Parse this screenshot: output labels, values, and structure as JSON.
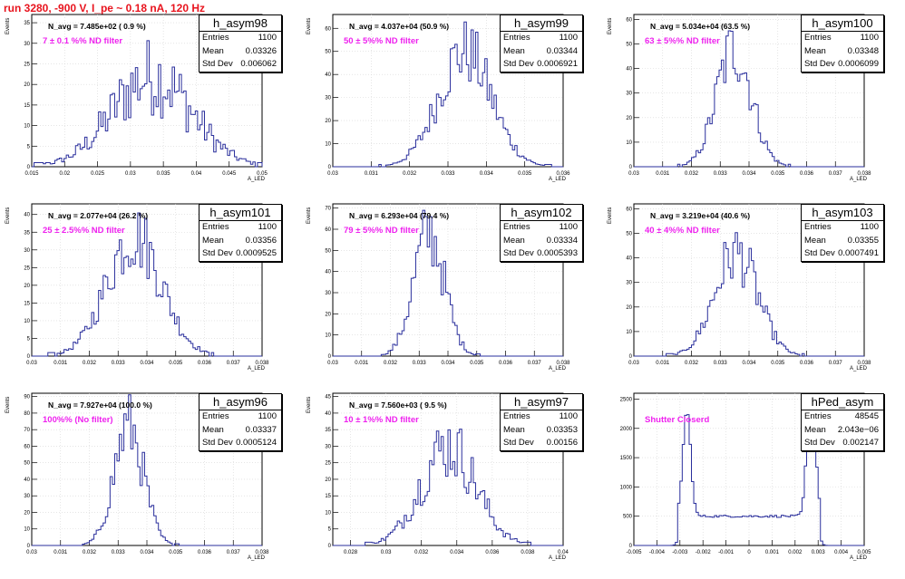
{
  "header": {
    "title": "run 3280,  -900 V, I_pe ~ 0.18 nA, 120 Hz"
  },
  "colors": {
    "title": "#e8141e",
    "hist_line": "#2a2f9c",
    "filter_text": "#ee22ee",
    "axis": "#000000"
  },
  "chart_data": [
    {
      "type": "bar",
      "name": "h_asym98",
      "stats": {
        "entries": "1100",
        "mean": "0.03326",
        "std": "0.006062"
      },
      "n_avg": "N_avg = 7.485e+02 ( 0.9 %)",
      "filter": "7 ± 0.1 %% ND filter",
      "xlabel": "A_LED",
      "ylabel": "Events",
      "xlim": [
        0.015,
        0.05
      ],
      "ylim": [
        0,
        37
      ],
      "xticks": [
        0.015,
        0.02,
        0.025,
        0.03,
        0.035,
        0.04,
        0.045,
        0.05
      ],
      "yticks": [
        0,
        5,
        10,
        15,
        20,
        25,
        30,
        35
      ],
      "shape": {
        "type": "gauss",
        "mean": 0.03326,
        "sigma": 0.006062,
        "peak": 22,
        "noise": 0.45
      }
    },
    {
      "type": "bar",
      "name": "h_asym99",
      "stats": {
        "entries": "1100",
        "mean": "0.03344",
        "std": "0.0006921"
      },
      "n_avg": "N_avg = 4.037e+04 (50.9 %)",
      "filter": "50 ± 5%% ND filter",
      "xlabel": "A_LED",
      "ylabel": "Events",
      "xlim": [
        0.03,
        0.036
      ],
      "ylim": [
        0,
        66
      ],
      "xticks": [
        0.03,
        0.031,
        0.032,
        0.033,
        0.034,
        0.035,
        0.036
      ],
      "yticks": [
        0,
        10,
        20,
        30,
        40,
        50,
        60
      ],
      "shape": {
        "type": "gauss",
        "mean": 0.03344,
        "sigma": 0.0006921,
        "peak": 50,
        "noise": 0.3
      }
    },
    {
      "type": "bar",
      "name": "h_asym100",
      "stats": {
        "entries": "1100",
        "mean": "0.03348",
        "std": "0.0006099"
      },
      "n_avg": "N_avg = 5.034e+04 (63.5 %)",
      "filter": "63 ± 5%% ND filter",
      "xlabel": "A_LED",
      "ylabel": "Events",
      "xlim": [
        0.03,
        0.038
      ],
      "ylim": [
        0,
        62
      ],
      "xticks": [
        0.03,
        0.031,
        0.032,
        0.033,
        0.034,
        0.035,
        0.036,
        0.037,
        0.038
      ],
      "yticks": [
        0,
        10,
        20,
        30,
        40,
        50,
        60
      ],
      "shape": {
        "type": "gauss",
        "mean": 0.03348,
        "sigma": 0.0006099,
        "peak": 48,
        "noise": 0.3
      }
    },
    {
      "type": "bar",
      "name": "h_asym101",
      "stats": {
        "entries": "1100",
        "mean": "0.03356",
        "std": "0.0009525"
      },
      "n_avg": "N_avg = 2.077e+04 (26.2 %)",
      "filter": "25 ± 2.5%% ND filter",
      "xlabel": "A_LED",
      "ylabel": "Events",
      "xlim": [
        0.03,
        0.038
      ],
      "ylim": [
        0,
        43
      ],
      "xticks": [
        0.03,
        0.031,
        0.032,
        0.033,
        0.034,
        0.035,
        0.036,
        0.037,
        0.038
      ],
      "yticks": [
        0,
        5,
        10,
        15,
        20,
        25,
        30,
        35,
        40
      ],
      "shape": {
        "type": "gauss",
        "mean": 0.03356,
        "sigma": 0.0009525,
        "peak": 34,
        "noise": 0.3
      }
    },
    {
      "type": "bar",
      "name": "h_asym102",
      "stats": {
        "entries": "1100",
        "mean": "0.03334",
        "std": "0.0005393"
      },
      "n_avg": "N_avg = 6.293e+04 (79.4 %)",
      "filter": "79 ± 5%% ND filter",
      "xlabel": "A_LED",
      "ylabel": "Events",
      "xlim": [
        0.03,
        0.038
      ],
      "ylim": [
        0,
        72
      ],
      "xticks": [
        0.03,
        0.031,
        0.032,
        0.033,
        0.034,
        0.035,
        0.036,
        0.037,
        0.038
      ],
      "yticks": [
        0,
        10,
        20,
        30,
        40,
        50,
        60,
        70
      ],
      "shape": {
        "type": "gauss",
        "mean": 0.03334,
        "sigma": 0.0005393,
        "peak": 58,
        "noise": 0.3
      }
    },
    {
      "type": "bar",
      "name": "h_asym103",
      "stats": {
        "entries": "1100",
        "mean": "0.03355",
        "std": "0.0007491"
      },
      "n_avg": "N_avg = 3.219e+04 (40.6 %)",
      "filter": "40 ± 4%% ND filter",
      "xlabel": "A_LED",
      "ylabel": "Events",
      "xlim": [
        0.03,
        0.038
      ],
      "ylim": [
        0,
        62
      ],
      "xticks": [
        0.03,
        0.031,
        0.032,
        0.033,
        0.034,
        0.035,
        0.036,
        0.037,
        0.038
      ],
      "yticks": [
        0,
        10,
        20,
        30,
        40,
        50,
        60
      ],
      "shape": {
        "type": "gauss",
        "mean": 0.03355,
        "sigma": 0.0007491,
        "peak": 42,
        "noise": 0.3
      }
    },
    {
      "type": "bar",
      "name": "h_asym96",
      "stats": {
        "entries": "1100",
        "mean": "0.03337",
        "std": "0.0005124"
      },
      "n_avg": "N_avg = 7.927e+04 (100.0 %)",
      "filter": "100%% (No filter)",
      "xlabel": "A_LED",
      "ylabel": "Events",
      "xlim": [
        0.03,
        0.038
      ],
      "ylim": [
        0,
        92
      ],
      "xticks": [
        0.03,
        0.031,
        0.032,
        0.033,
        0.034,
        0.035,
        0.036,
        0.037,
        0.038
      ],
      "yticks": [
        0,
        10,
        20,
        30,
        40,
        50,
        60,
        70,
        80,
        90
      ],
      "shape": {
        "type": "gauss",
        "mean": 0.03337,
        "sigma": 0.0005124,
        "peak": 72,
        "noise": 0.3
      }
    },
    {
      "type": "bar",
      "name": "h_asym97",
      "stats": {
        "entries": "1100",
        "mean": "0.03353",
        "std": "0.00156"
      },
      "n_avg": "N_avg = 7.560e+03 ( 9.5 %)",
      "filter": "10 ± 1%% ND filter",
      "xlabel": "A_LED",
      "ylabel": "Events",
      "xlim": [
        0.027,
        0.04
      ],
      "ylim": [
        0,
        46
      ],
      "xticks": [
        0.028,
        0.03,
        0.032,
        0.034,
        0.036,
        0.038,
        0.04
      ],
      "yticks": [
        0,
        5,
        10,
        15,
        20,
        25,
        30,
        35,
        40,
        45
      ],
      "shape": {
        "type": "gauss",
        "mean": 0.03353,
        "sigma": 0.00156,
        "peak": 30,
        "noise": 0.35
      }
    },
    {
      "type": "bar",
      "name": "hPed_asym",
      "stats": {
        "entries": "48545",
        "mean": "2.043e−06",
        "std": "0.002147"
      },
      "n_avg": "",
      "filter": "Shutter Closerd",
      "xlabel": "A_LED",
      "ylabel": "",
      "xlim": [
        -0.005,
        0.005
      ],
      "ylim": [
        0,
        2600
      ],
      "xticks": [
        -0.005,
        -0.004,
        -0.003,
        -0.002,
        -0.001,
        0,
        0.001,
        0.002,
        0.003,
        0.004,
        0.005
      ],
      "yticks": [
        0,
        500,
        1000,
        1500,
        2000,
        2500
      ],
      "shape": {
        "type": "ped",
        "peaks": [
          [
            -0.0027,
            0.00017,
            1800
          ],
          [
            0.0027,
            0.00017,
            2500
          ]
        ],
        "plateau": 500,
        "range": [
          -0.0031,
          0.0031
        ],
        "noise": 0.04
      }
    }
  ]
}
